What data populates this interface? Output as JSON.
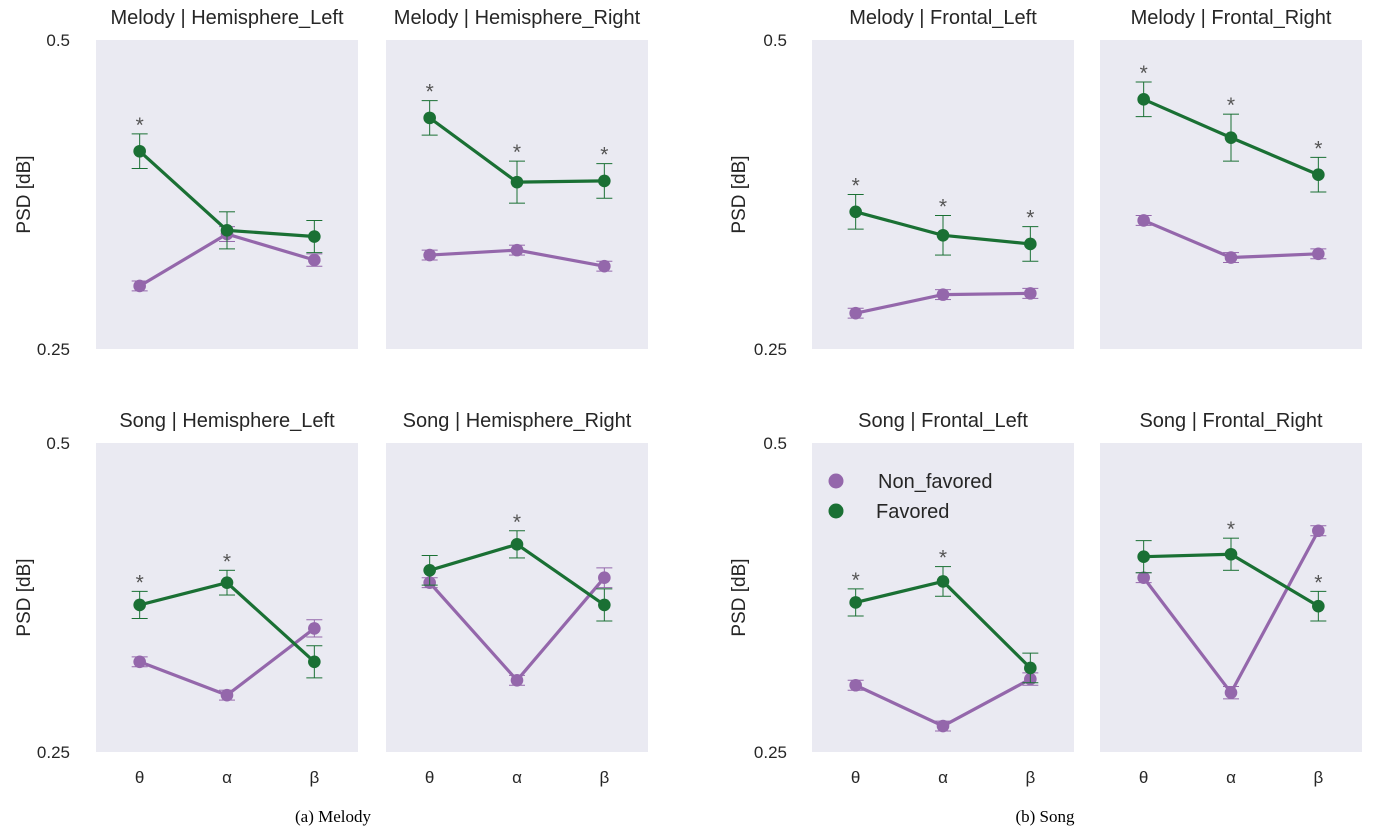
{
  "colors": {
    "non_favored": "#9467ab",
    "favored": "#1a7034",
    "panel_bg": "#eaeaf2"
  },
  "chart_data": [
    {
      "type": "line",
      "caption": "(a) Melody",
      "ylabel": "PSD [dB]",
      "y_ticks": [
        "0.5",
        "0.25"
      ],
      "ylim": [
        0.25,
        0.5
      ],
      "categories": [
        "θ",
        "α",
        "β"
      ],
      "legend": [
        "Non_favored",
        "Favored"
      ],
      "legend_location": "upper-left of bottom-left panel",
      "panels": [
        {
          "title": "Melody | Hemisphere_Left",
          "series": [
            {
              "name": "Non_favored",
              "values": [
                0.301,
                0.343,
                0.322
              ],
              "err": [
                0.004,
                0.006,
                0.005
              ]
            },
            {
              "name": "Favored",
              "values": [
                0.41,
                0.346,
                0.341
              ],
              "err": [
                0.014,
                0.015,
                0.013
              ]
            }
          ],
          "significant": [
            "θ"
          ]
        },
        {
          "title": "Melody | Hemisphere_Right",
          "series": [
            {
              "name": "Non_favored",
              "values": [
                0.326,
                0.33,
                0.317
              ],
              "err": [
                0.004,
                0.004,
                0.004
              ]
            },
            {
              "name": "Favored",
              "values": [
                0.437,
                0.385,
                0.386
              ],
              "err": [
                0.014,
                0.017,
                0.014
              ]
            }
          ],
          "significant": [
            "θ",
            "α",
            "β"
          ]
        }
      ]
    },
    {
      "type": "line",
      "caption": "(a) Melody",
      "ylabel": "PSD [dB]",
      "y_ticks": [
        "0.5",
        "0.25"
      ],
      "ylim": [
        0.25,
        0.5
      ],
      "categories": [
        "θ",
        "α",
        "β"
      ],
      "panels": [
        {
          "title": "Song | Hemisphere_Left",
          "series": [
            {
              "name": "Non_favored",
              "values": [
                0.323,
                0.296,
                0.35
              ],
              "err": [
                0.004,
                0.004,
                0.007
              ]
            },
            {
              "name": "Favored",
              "values": [
                0.369,
                0.387,
                0.323
              ],
              "err": [
                0.011,
                0.01,
                0.013
              ]
            }
          ],
          "significant": [
            "θ",
            "α"
          ]
        },
        {
          "title": "Song | Hemisphere_Right",
          "series": [
            {
              "name": "Non_favored",
              "values": [
                0.387,
                0.308,
                0.391
              ],
              "err": [
                0.004,
                0.004,
                0.008
              ]
            },
            {
              "name": "Favored",
              "values": [
                0.397,
                0.418,
                0.369
              ],
              "err": [
                0.012,
                0.011,
                0.013
              ]
            }
          ],
          "significant": [
            "α"
          ]
        }
      ]
    },
    {
      "type": "line",
      "caption": "(b) Song",
      "ylabel": "PSD [dB]",
      "y_ticks": [
        "0.5",
        "0.25"
      ],
      "ylim": [
        0.25,
        0.5
      ],
      "categories": [
        "θ",
        "α",
        "β"
      ],
      "panels": [
        {
          "title": "Melody | Frontal_Left",
          "series": [
            {
              "name": "Non_favored",
              "values": [
                0.279,
                0.294,
                0.295
              ],
              "err": [
                0.004,
                0.004,
                0.004
              ]
            },
            {
              "name": "Favored",
              "values": [
                0.361,
                0.342,
                0.335
              ],
              "err": [
                0.014,
                0.016,
                0.014
              ]
            }
          ],
          "significant": [
            "θ",
            "α",
            "β"
          ]
        },
        {
          "title": "Melody | Frontal_Right",
          "series": [
            {
              "name": "Non_favored",
              "values": [
                0.354,
                0.324,
                0.327
              ],
              "err": [
                0.004,
                0.004,
                0.004
              ]
            },
            {
              "name": "Favored",
              "values": [
                0.452,
                0.421,
                0.391
              ],
              "err": [
                0.014,
                0.019,
                0.014
              ]
            }
          ],
          "significant": [
            "θ",
            "α",
            "β"
          ]
        }
      ]
    },
    {
      "type": "line",
      "caption": "(b) Song",
      "ylabel": "PSD [dB]",
      "y_ticks": [
        "0.5",
        "0.25"
      ],
      "ylim": [
        0.25,
        0.5
      ],
      "categories": [
        "θ",
        "α",
        "β"
      ],
      "legend": [
        "Non_favored",
        "Favored"
      ],
      "legend_location": "upper-left of bottom-left panel",
      "panels": [
        {
          "title": "Song | Frontal_Left",
          "series": [
            {
              "name": "Non_favored",
              "values": [
                0.304,
                0.271,
                0.309
              ],
              "err": [
                0.004,
                0.004,
                0.005
              ]
            },
            {
              "name": "Favored",
              "values": [
                0.371,
                0.388,
                0.318
              ],
              "err": [
                0.011,
                0.012,
                0.012
              ]
            }
          ],
          "significant": [
            "θ",
            "α"
          ]
        },
        {
          "title": "Song | Frontal_Right",
          "series": [
            {
              "name": "Non_favored",
              "values": [
                0.391,
                0.298,
                0.429
              ],
              "err": [
                0.004,
                0.005,
                0.004
              ]
            },
            {
              "name": "Favored",
              "values": [
                0.408,
                0.41,
                0.368
              ],
              "err": [
                0.013,
                0.013,
                0.012
              ]
            }
          ],
          "significant": [
            "α",
            "β"
          ]
        }
      ]
    }
  ]
}
